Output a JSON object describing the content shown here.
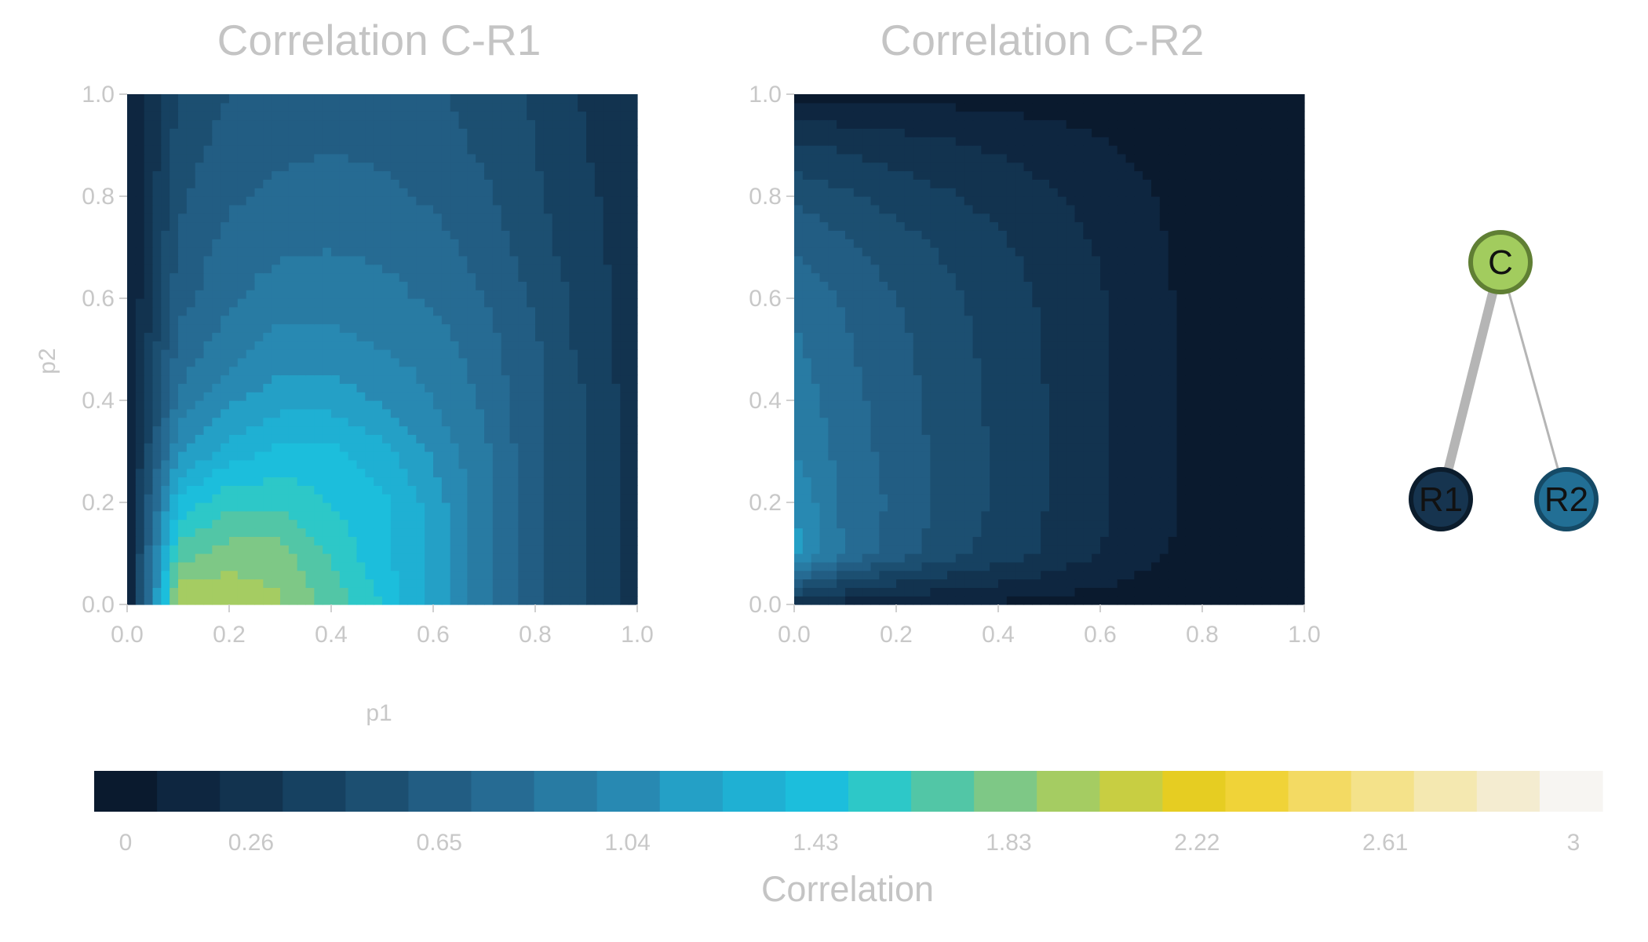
{
  "chart_data": [
    {
      "type": "heatmap",
      "title": "Correlation C-R1",
      "xlabel": "p1",
      "ylabel": "p2",
      "xlim": [
        0,
        1
      ],
      "ylim": [
        0,
        1
      ],
      "xticks": [
        "0.0",
        "0.2",
        "0.4",
        "0.6",
        "0.8",
        "1.0"
      ],
      "yticks": [
        "0.0",
        "0.2",
        "0.4",
        "0.6",
        "0.8",
        "1.0"
      ],
      "values_by_row": [
        {
          "p2": 0.0,
          "values": [
            0.0,
            2.0,
            2.0,
            1.9,
            1.7,
            1.5,
            1.2,
            0.9,
            0.65,
            0.5,
            0.3
          ]
        },
        {
          "p2": 0.1,
          "values": [
            0.1,
            1.7,
            1.8,
            1.8,
            1.6,
            1.4,
            1.2,
            0.9,
            0.65,
            0.5,
            0.3
          ]
        },
        {
          "p2": 0.2,
          "values": [
            0.1,
            1.4,
            1.6,
            1.6,
            1.5,
            1.4,
            1.2,
            0.9,
            0.65,
            0.5,
            0.3
          ]
        },
        {
          "p2": 0.3,
          "values": [
            0.1,
            1.1,
            1.3,
            1.4,
            1.4,
            1.3,
            1.1,
            0.9,
            0.65,
            0.5,
            0.3
          ]
        },
        {
          "p2": 0.4,
          "values": [
            0.1,
            0.9,
            1.1,
            1.2,
            1.2,
            1.1,
            1.0,
            0.85,
            0.65,
            0.5,
            0.3
          ]
        },
        {
          "p2": 0.5,
          "values": [
            0.1,
            0.8,
            0.95,
            1.05,
            1.05,
            1.0,
            0.95,
            0.8,
            0.65,
            0.45,
            0.3
          ]
        },
        {
          "p2": 0.6,
          "values": [
            0.1,
            0.7,
            0.85,
            0.95,
            0.95,
            0.92,
            0.85,
            0.75,
            0.6,
            0.45,
            0.3
          ]
        },
        {
          "p2": 0.7,
          "values": [
            0.1,
            0.65,
            0.8,
            0.85,
            0.87,
            0.85,
            0.8,
            0.7,
            0.55,
            0.42,
            0.3
          ]
        },
        {
          "p2": 0.8,
          "values": [
            0.1,
            0.6,
            0.73,
            0.78,
            0.8,
            0.78,
            0.73,
            0.65,
            0.52,
            0.4,
            0.3
          ]
        },
        {
          "p2": 0.9,
          "values": [
            0.1,
            0.55,
            0.68,
            0.72,
            0.74,
            0.72,
            0.68,
            0.6,
            0.5,
            0.38,
            0.25
          ]
        },
        {
          "p2": 1.0,
          "values": [
            0.1,
            0.5,
            0.63,
            0.68,
            0.7,
            0.68,
            0.64,
            0.58,
            0.48,
            0.36,
            0.25
          ]
        }
      ],
      "x": [
        0.0,
        0.1,
        0.2,
        0.3,
        0.4,
        0.5,
        0.6,
        0.7,
        0.8,
        0.9,
        1.0
      ]
    },
    {
      "type": "heatmap",
      "title": "Correlation C-R2",
      "xlabel": "",
      "ylabel": "",
      "xlim": [
        0,
        1
      ],
      "ylim": [
        0,
        1
      ],
      "xticks": [
        "0.0",
        "0.2",
        "0.4",
        "0.6",
        "0.8",
        "1.0"
      ],
      "yticks": [
        "0.0",
        "0.2",
        "0.4",
        "0.6",
        "0.8",
        "1.0"
      ],
      "values_by_row": [
        {
          "p2": 0.0,
          "values": [
            0.3,
            0.2,
            0.15,
            0.12,
            0.1,
            0.08,
            0.06,
            0.04,
            0.02,
            0.0,
            0.0
          ]
        },
        {
          "p2": 0.1,
          "values": [
            1.2,
            0.85,
            0.7,
            0.55,
            0.45,
            0.35,
            0.25,
            0.15,
            0.08,
            0.03,
            0.0
          ]
        },
        {
          "p2": 0.2,
          "values": [
            1.1,
            0.85,
            0.72,
            0.58,
            0.48,
            0.37,
            0.27,
            0.17,
            0.08,
            0.03,
            0.0
          ]
        },
        {
          "p2": 0.3,
          "values": [
            1.0,
            0.82,
            0.7,
            0.58,
            0.48,
            0.37,
            0.27,
            0.17,
            0.08,
            0.03,
            0.0
          ]
        },
        {
          "p2": 0.4,
          "values": [
            0.95,
            0.8,
            0.68,
            0.57,
            0.47,
            0.37,
            0.27,
            0.17,
            0.08,
            0.03,
            0.0
          ]
        },
        {
          "p2": 0.5,
          "values": [
            0.9,
            0.77,
            0.66,
            0.55,
            0.46,
            0.36,
            0.26,
            0.17,
            0.08,
            0.03,
            0.0
          ]
        },
        {
          "p2": 0.6,
          "values": [
            0.85,
            0.73,
            0.63,
            0.53,
            0.44,
            0.35,
            0.26,
            0.16,
            0.08,
            0.03,
            0.0
          ]
        },
        {
          "p2": 0.7,
          "values": [
            0.75,
            0.65,
            0.56,
            0.48,
            0.4,
            0.32,
            0.24,
            0.15,
            0.07,
            0.03,
            0.0
          ]
        },
        {
          "p2": 0.8,
          "values": [
            0.6,
            0.52,
            0.45,
            0.39,
            0.33,
            0.27,
            0.2,
            0.13,
            0.06,
            0.02,
            0.0
          ]
        },
        {
          "p2": 0.9,
          "values": [
            0.4,
            0.35,
            0.31,
            0.27,
            0.23,
            0.19,
            0.14,
            0.09,
            0.04,
            0.02,
            0.0
          ]
        },
        {
          "p2": 1.0,
          "values": [
            0.1,
            0.1,
            0.1,
            0.08,
            0.07,
            0.06,
            0.05,
            0.03,
            0.02,
            0.0,
            0.0
          ]
        }
      ],
      "x": [
        0.0,
        0.1,
        0.2,
        0.3,
        0.4,
        0.5,
        0.6,
        0.7,
        0.8,
        0.9,
        1.0
      ]
    }
  ],
  "network": {
    "nodes": [
      {
        "id": "C",
        "label": "C",
        "fill": "#a2cc5e",
        "stroke": "#607f34"
      },
      {
        "id": "R1",
        "label": "R1",
        "fill": "#16344f",
        "stroke": "#0b1c2c"
      },
      {
        "id": "R2",
        "label": "R2",
        "fill": "#226f95",
        "stroke": "#154a66"
      }
    ],
    "edges": [
      {
        "from": "C",
        "to": "R1",
        "weight": "strong"
      },
      {
        "from": "C",
        "to": "R2",
        "weight": "weak"
      }
    ]
  },
  "colorbar": {
    "label": "Correlation",
    "min": 0,
    "max": 3,
    "bins": 24,
    "ticks": [
      "0",
      "0.26",
      "0.65",
      "1.04",
      "1.43",
      "1.83",
      "2.22",
      "2.61",
      "3"
    ],
    "tick_values": [
      0,
      0.26,
      0.65,
      1.04,
      1.43,
      1.83,
      2.22,
      2.61,
      3
    ],
    "colors": [
      "#0a1a2e",
      "#0e2640",
      "#12334f",
      "#164161",
      "#1c4f71",
      "#225d83",
      "#266b93",
      "#287ba3",
      "#2889b2",
      "#24a0c6",
      "#1fb0d3",
      "#1cbedc",
      "#2dc8c8",
      "#52c6a6",
      "#7ec886",
      "#a5cc62",
      "#c8ce42",
      "#e6cd22",
      "#f0d338",
      "#f3da63",
      "#f4e28a",
      "#f4e8b0",
      "#f4ecd0",
      "#f7f5f2"
    ]
  }
}
